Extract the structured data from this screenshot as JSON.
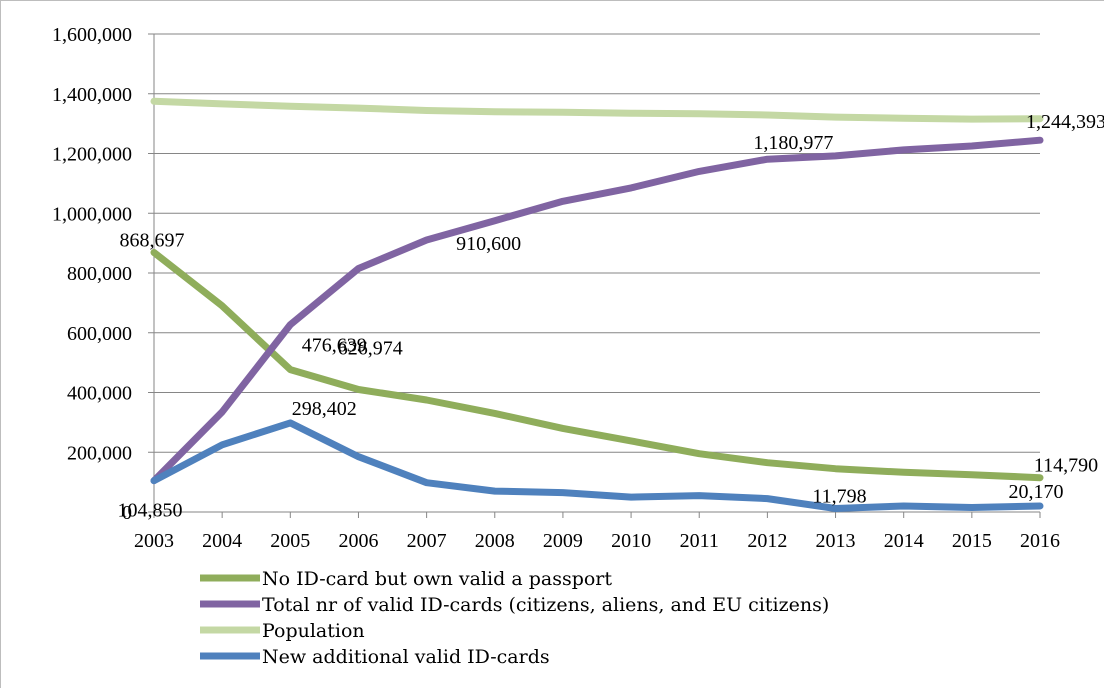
{
  "chart_data": {
    "type": "line",
    "title": "",
    "xlabel": "",
    "ylabel": "",
    "categories": [
      "2003",
      "2004",
      "2005",
      "2006",
      "2007",
      "2008",
      "2009",
      "2010",
      "2011",
      "2012",
      "2013",
      "2014",
      "2015",
      "2016"
    ],
    "ylim": [
      0,
      1600000
    ],
    "y_ticks": [
      0,
      200000,
      400000,
      600000,
      800000,
      1000000,
      1200000,
      1400000,
      1600000
    ],
    "y_tick_labels": [
      "0",
      "200,000",
      "400,000",
      "600,000",
      "800,000",
      "1,000,000",
      "1,200,000",
      "1,400,000",
      "1,600,000"
    ],
    "grid": "horizontal",
    "legend_position": "bottom",
    "series": [
      {
        "name": "No ID-card but own valid a passport",
        "color": "#8fad5b",
        "values": [
          868697,
          690000,
          476639,
          410000,
          375000,
          330000,
          280000,
          238000,
          195000,
          165000,
          145000,
          133000,
          125000,
          114790
        ]
      },
      {
        "name": "Total nr of valid ID-cards (citizens, aliens, and EU citizens)",
        "color": "#8064a2",
        "values": [
          104850,
          335000,
          626974,
          815000,
          910600,
          975000,
          1040000,
          1085000,
          1140000,
          1180977,
          1192000,
          1212000,
          1225000,
          1244393
        ]
      },
      {
        "name": "Population",
        "color": "#c4d8a4",
        "values": [
          1375000,
          1366000,
          1358000,
          1352000,
          1344000,
          1340000,
          1338000,
          1335000,
          1333000,
          1329000,
          1322000,
          1318000,
          1315000,
          1316000
        ]
      },
      {
        "name": "New additional valid ID-cards",
        "color": "#4f81bd",
        "values": [
          104850,
          225000,
          298402,
          185000,
          98000,
          70000,
          65000,
          50000,
          55000,
          45000,
          11798,
          20000,
          15000,
          20170
        ]
      }
    ],
    "data_labels": [
      {
        "text": "868,697",
        "series": 0,
        "index": 0
      },
      {
        "text": "476,639",
        "series": 0,
        "index": 2
      },
      {
        "text": "114,790",
        "series": 0,
        "index": 13
      },
      {
        "text": "626,974",
        "series": 1,
        "index": 2
      },
      {
        "text": "910,600",
        "series": 1,
        "index": 4
      },
      {
        "text": "1,180,977",
        "series": 1,
        "index": 9
      },
      {
        "text": "1,244,393",
        "series": 1,
        "index": 13
      },
      {
        "text": "104,850",
        "series": 3,
        "index": 0
      },
      {
        "text": "298,402",
        "series": 3,
        "index": 2
      },
      {
        "text": "11,798",
        "series": 3,
        "index": 10
      },
      {
        "text": "20,170",
        "series": 3,
        "index": 13
      }
    ]
  }
}
